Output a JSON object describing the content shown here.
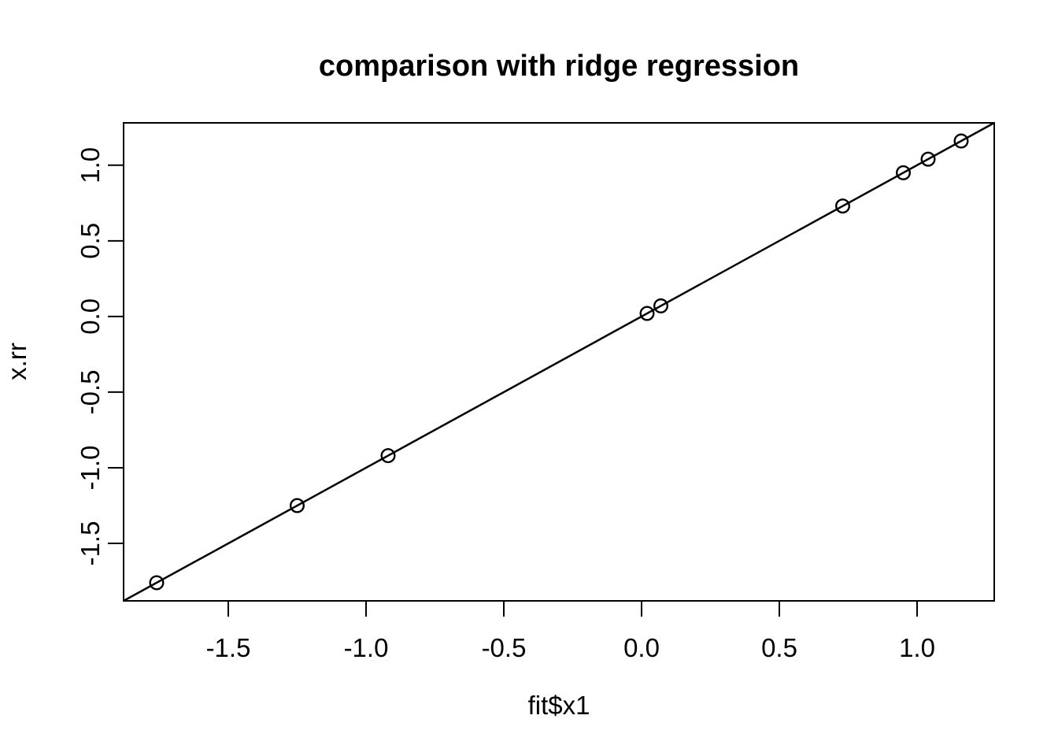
{
  "colors": {
    "foreground": "#000000",
    "background": "#ffffff"
  },
  "chart_data": {
    "type": "scatter",
    "title": "comparison with ridge regression",
    "xlabel": "fit$x1",
    "ylabel": "x.rr",
    "xlim": [
      -1.88,
      1.28
    ],
    "ylim": [
      -1.88,
      1.28
    ],
    "x_ticks": [
      -1.5,
      -1.0,
      -0.5,
      0.0,
      0.5,
      1.0
    ],
    "y_ticks": [
      -1.5,
      -1.0,
      -0.5,
      0.0,
      0.5,
      1.0
    ],
    "tick_label_format": "one-decimal",
    "grid": false,
    "legend": null,
    "marker": "open-circle",
    "points": [
      {
        "x": -1.76,
        "y": -1.76
      },
      {
        "x": -1.25,
        "y": -1.25
      },
      {
        "x": -0.92,
        "y": -0.92
      },
      {
        "x": 0.02,
        "y": 0.02
      },
      {
        "x": 0.07,
        "y": 0.07
      },
      {
        "x": 0.73,
        "y": 0.73
      },
      {
        "x": 0.95,
        "y": 0.95
      },
      {
        "x": 1.04,
        "y": 1.04
      },
      {
        "x": 1.16,
        "y": 1.16
      }
    ],
    "reference_line": {
      "intercept": 0,
      "slope": 1
    }
  }
}
